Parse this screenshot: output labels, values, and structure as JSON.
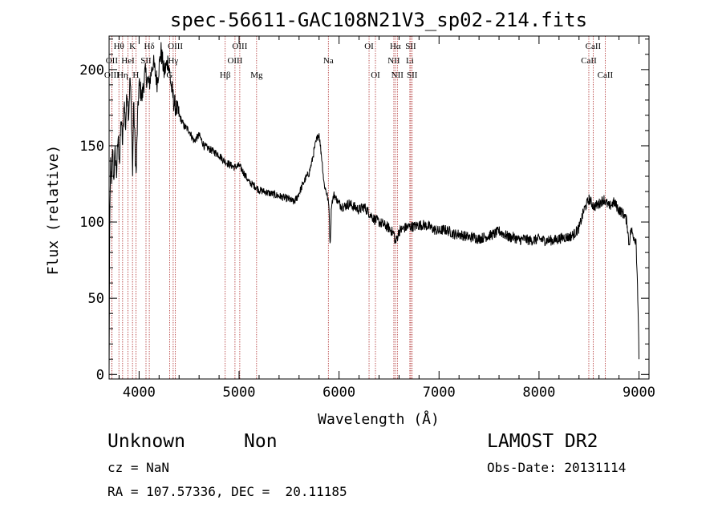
{
  "chart_data": {
    "type": "line",
    "title": "spec-56611-GAC108N21V3_sp02-214.fits",
    "xlabel": "Wavelength (Å)",
    "ylabel": "Flux (relative)",
    "xlim": [
      3700,
      9100
    ],
    "ylim": [
      -3,
      222
    ],
    "x_ticks": [
      4000,
      5000,
      6000,
      7000,
      8000,
      9000
    ],
    "y_ticks": [
      0,
      50,
      100,
      150,
      200
    ],
    "grid": false,
    "spectrum_anchors": [
      [
        3700,
        0
      ],
      [
        3705,
        85
      ],
      [
        3715,
        140
      ],
      [
        3725,
        122
      ],
      [
        3735,
        150
      ],
      [
        3745,
        128
      ],
      [
        3760,
        145
      ],
      [
        3775,
        132
      ],
      [
        3790,
        155
      ],
      [
        3805,
        140
      ],
      [
        3820,
        168
      ],
      [
        3835,
        150
      ],
      [
        3850,
        180
      ],
      [
        3865,
        162
      ],
      [
        3880,
        188
      ],
      [
        3895,
        170
      ],
      [
        3910,
        195
      ],
      [
        3925,
        168
      ],
      [
        3935,
        130
      ],
      [
        3945,
        178
      ],
      [
        3960,
        150
      ],
      [
        3970,
        130
      ],
      [
        3985,
        168
      ],
      [
        4000,
        190
      ],
      [
        4030,
        182
      ],
      [
        4060,
        198
      ],
      [
        4100,
        190
      ],
      [
        4140,
        205
      ],
      [
        4180,
        192
      ],
      [
        4220,
        212
      ],
      [
        4250,
        198
      ],
      [
        4290,
        206
      ],
      [
        4320,
        190
      ],
      [
        4350,
        178
      ],
      [
        4400,
        170
      ],
      [
        4450,
        163
      ],
      [
        4500,
        160
      ],
      [
        4550,
        153
      ],
      [
        4600,
        157
      ],
      [
        4650,
        150
      ],
      [
        4700,
        148
      ],
      [
        4750,
        146
      ],
      [
        4800,
        144
      ],
      [
        4850,
        140
      ],
      [
        4900,
        138
      ],
      [
        4950,
        136
      ],
      [
        5000,
        137
      ],
      [
        5050,
        132
      ],
      [
        5100,
        126
      ],
      [
        5150,
        124
      ],
      [
        5200,
        121
      ],
      [
        5250,
        120
      ],
      [
        5300,
        119
      ],
      [
        5350,
        118
      ],
      [
        5400,
        117
      ],
      [
        5450,
        116
      ],
      [
        5500,
        115
      ],
      [
        5550,
        113
      ],
      [
        5580,
        116
      ],
      [
        5620,
        122
      ],
      [
        5660,
        128
      ],
      [
        5700,
        132
      ],
      [
        5730,
        140
      ],
      [
        5760,
        150
      ],
      [
        5780,
        155
      ],
      [
        5800,
        158
      ],
      [
        5830,
        140
      ],
      [
        5850,
        125
      ],
      [
        5880,
        118
      ],
      [
        5900,
        110
      ],
      [
        5910,
        84
      ],
      [
        5925,
        112
      ],
      [
        5950,
        118
      ],
      [
        6000,
        112
      ],
      [
        6050,
        110
      ],
      [
        6100,
        112
      ],
      [
        6150,
        110
      ],
      [
        6200,
        108
      ],
      [
        6250,
        110
      ],
      [
        6300,
        106
      ],
      [
        6350,
        102
      ],
      [
        6400,
        100
      ],
      [
        6450,
        98
      ],
      [
        6500,
        96
      ],
      [
        6550,
        92
      ],
      [
        6563,
        86
      ],
      [
        6600,
        94
      ],
      [
        6650,
        96
      ],
      [
        6700,
        97
      ],
      [
        6750,
        97
      ],
      [
        6800,
        98
      ],
      [
        6850,
        98
      ],
      [
        6900,
        97
      ],
      [
        6950,
        95
      ],
      [
        7000,
        94
      ],
      [
        7050,
        95
      ],
      [
        7100,
        94
      ],
      [
        7150,
        92
      ],
      [
        7200,
        92
      ],
      [
        7250,
        91
      ],
      [
        7300,
        90
      ],
      [
        7350,
        90
      ],
      [
        7400,
        89
      ],
      [
        7450,
        90
      ],
      [
        7500,
        91
      ],
      [
        7550,
        92
      ],
      [
        7600,
        94
      ],
      [
        7650,
        92
      ],
      [
        7700,
        90
      ],
      [
        7750,
        90
      ],
      [
        7800,
        88
      ],
      [
        7850,
        89
      ],
      [
        7900,
        88
      ],
      [
        7950,
        88
      ],
      [
        8000,
        89
      ],
      [
        8050,
        88
      ],
      [
        8100,
        88
      ],
      [
        8150,
        88
      ],
      [
        8200,
        89
      ],
      [
        8250,
        90
      ],
      [
        8300,
        90
      ],
      [
        8350,
        92
      ],
      [
        8400,
        96
      ],
      [
        8450,
        108
      ],
      [
        8500,
        115
      ],
      [
        8550,
        110
      ],
      [
        8600,
        112
      ],
      [
        8650,
        115
      ],
      [
        8700,
        110
      ],
      [
        8750,
        113
      ],
      [
        8800,
        108
      ],
      [
        8850,
        105
      ],
      [
        8880,
        100
      ],
      [
        8900,
        85
      ],
      [
        8920,
        95
      ],
      [
        8950,
        90
      ],
      [
        8970,
        88
      ],
      [
        8985,
        60
      ],
      [
        9000,
        10
      ]
    ],
    "lines": [
      {
        "label": "Hθ",
        "x": 3798,
        "row": 0
      },
      {
        "label": "OII",
        "x": 3727,
        "row": 1
      },
      {
        "label": "OIII",
        "x": 3727,
        "row": 2
      },
      {
        "label": "K",
        "x": 3934,
        "row": 0
      },
      {
        "label": "HeI",
        "x": 3889,
        "row": 1
      },
      {
        "label": "Hη",
        "x": 3835,
        "row": 2
      },
      {
        "label": "Hδ",
        "x": 4102,
        "row": 0
      },
      {
        "label": "SII",
        "x": 4069,
        "row": 1
      },
      {
        "label": "H",
        "x": 3968,
        "row": 2
      },
      {
        "label": "OIII",
        "x": 4363,
        "row": 0
      },
      {
        "label": "Hγ",
        "x": 4341,
        "row": 1
      },
      {
        "label": "G",
        "x": 4305,
        "row": 2
      },
      {
        "label": "OIII",
        "x": 5007,
        "row": 0
      },
      {
        "label": "OIII",
        "x": 4959,
        "row": 1
      },
      {
        "label": "Hβ",
        "x": 4861,
        "row": 2
      },
      {
        "label": "Mg",
        "x": 5175,
        "row": 2
      },
      {
        "label": "Na",
        "x": 5893,
        "row": 1
      },
      {
        "label": "OI",
        "x": 6300,
        "row": 0
      },
      {
        "label": "OI",
        "x": 6364,
        "row": 2
      },
      {
        "label": "Hα",
        "x": 6563,
        "row": 0
      },
      {
        "label": "NII",
        "x": 6548,
        "row": 1
      },
      {
        "label": "NII",
        "x": 6583,
        "row": 2
      },
      {
        "label": "SII",
        "x": 6717,
        "row": 0
      },
      {
        "label": "Li",
        "x": 6708,
        "row": 1
      },
      {
        "label": "SII",
        "x": 6731,
        "row": 2
      },
      {
        "label": "CaII",
        "x": 8542,
        "row": 0
      },
      {
        "label": "CaII",
        "x": 8498,
        "row": 1
      },
      {
        "label": "CaII",
        "x": 8662,
        "row": 2
      }
    ]
  },
  "info": {
    "object_class": "Unknown",
    "subclass": "Non",
    "survey": "LAMOST DR2",
    "redshift": "cz = NaN",
    "obs_date": "Obs-Date: 20131114",
    "coords": "RA = 107.57336, DEC =  20.11185"
  }
}
